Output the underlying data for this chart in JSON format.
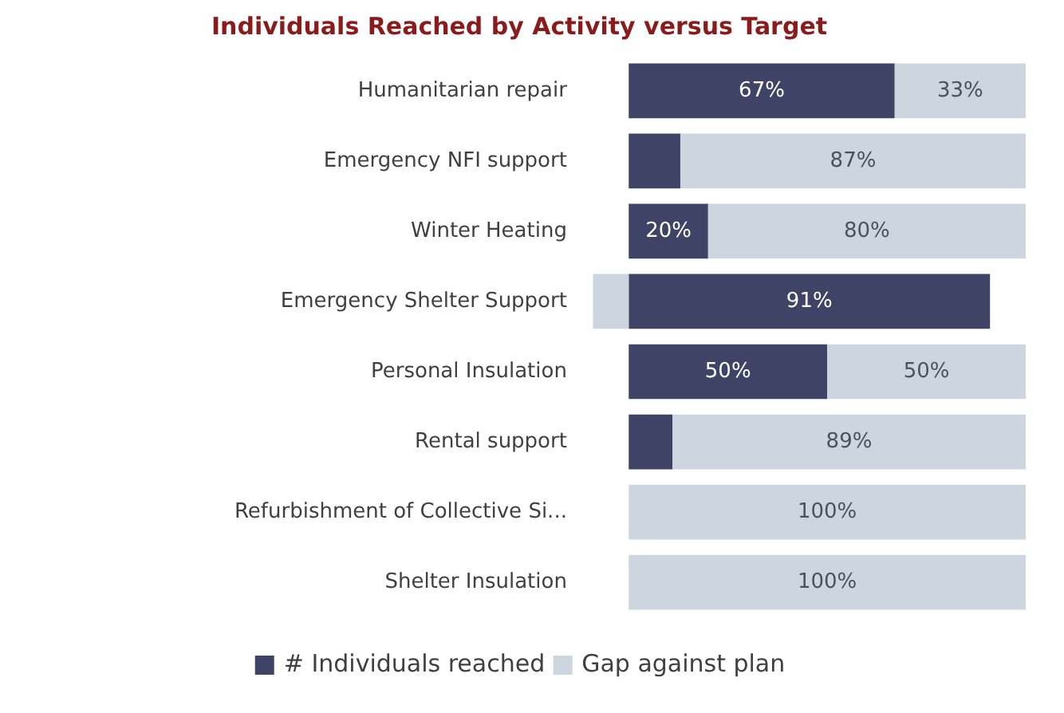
{
  "chart_data": {
    "type": "bar",
    "orientation": "horizontal",
    "stacked": true,
    "title": "Individuals Reached by Activity versus Target",
    "categories": [
      "Humanitarian repair",
      "Emergency NFI support",
      "Winter Heating",
      "Emergency Shelter Support",
      "Personal Insulation",
      "Rental support",
      "Refurbishment of Collective Si...",
      "Shelter Insulation"
    ],
    "series": [
      {
        "name": "# Individuals reached",
        "color": "#3f4466",
        "values": [
          67,
          13,
          20,
          91,
          50,
          11,
          0,
          0
        ],
        "value_labels": [
          "67%",
          null,
          "20%",
          "91%",
          "50%",
          null,
          null,
          null
        ]
      },
      {
        "name": "Gap against plan",
        "color": "#cdd5df",
        "values": [
          33,
          87,
          80,
          -9,
          50,
          89,
          100,
          100
        ],
        "value_labels": [
          "33%",
          "87%",
          "80%",
          null,
          "50%",
          "89%",
          "100%",
          "100%"
        ]
      }
    ],
    "legend": "bottom",
    "grid": false
  }
}
